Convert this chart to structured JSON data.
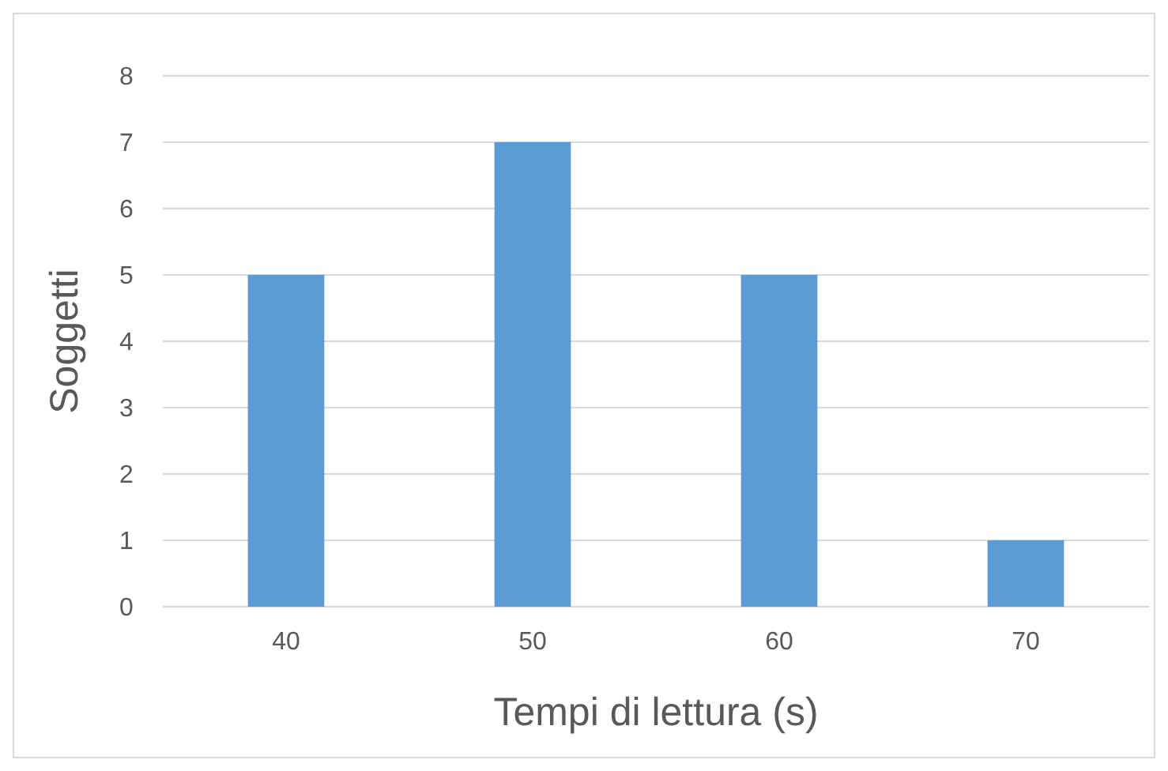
{
  "chart_data": {
    "type": "bar",
    "xlabel": "Tempi di lettura (s)",
    "ylabel": "Soggetti",
    "categories": [
      "40",
      "50",
      "60",
      "70"
    ],
    "values": [
      5,
      7,
      5,
      1
    ],
    "color": "#5b9bd5",
    "ylim": [
      0,
      8
    ],
    "yticks": [
      0,
      1,
      2,
      3,
      4,
      5,
      6,
      7,
      8
    ],
    "grid": "y"
  }
}
